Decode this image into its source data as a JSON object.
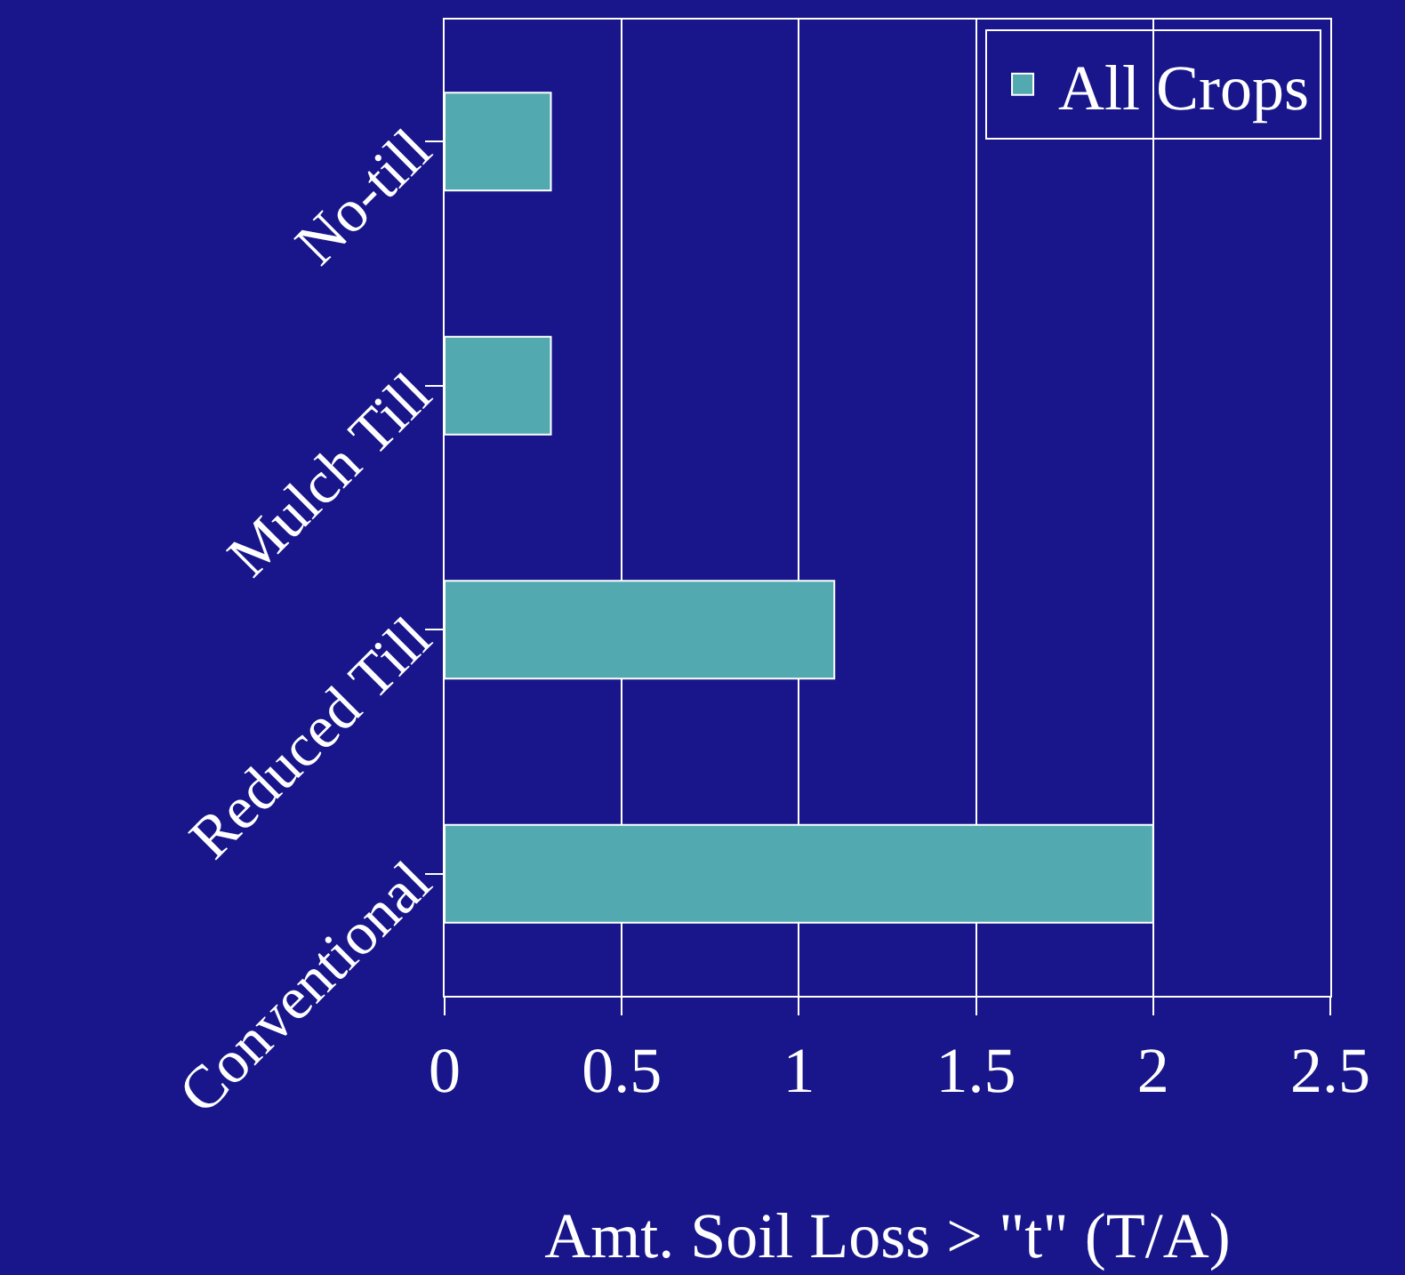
{
  "chart_data": {
    "type": "bar",
    "orientation": "horizontal",
    "xlabel": "Amt. Soil Loss > \"t\" (T/A)",
    "categories": [
      "No-till",
      "Mulch Till",
      "Reduced Till",
      "Conventional"
    ],
    "series": [
      {
        "name": "All Crops",
        "color": "#52aab0",
        "values": [
          0.3,
          0.3,
          1.1,
          2.0
        ]
      }
    ],
    "xlim": [
      0,
      2.5
    ],
    "xticks": [
      0,
      0.5,
      1,
      1.5,
      2,
      2.5
    ],
    "grid": "x",
    "legend": "top right"
  }
}
